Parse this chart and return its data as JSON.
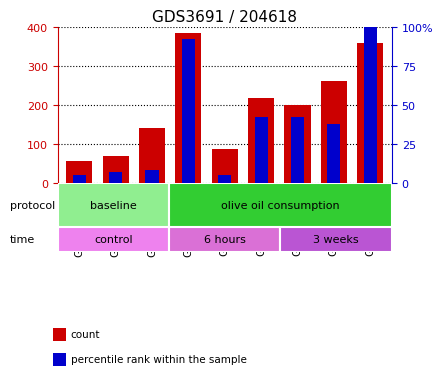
{
  "title": "GDS3691 / 204618",
  "categories": [
    "GSM266996",
    "GSM266997",
    "GSM266998",
    "GSM266999",
    "GSM267000",
    "GSM267001",
    "GSM267002",
    "GSM267003",
    "GSM267004"
  ],
  "count_values": [
    55,
    68,
    140,
    385,
    88,
    218,
    200,
    262,
    358
  ],
  "percentile_values": [
    5,
    7,
    8,
    92,
    5,
    42,
    42,
    38,
    105
  ],
  "ylim_left": [
    0,
    400
  ],
  "ylim_right": [
    0,
    100
  ],
  "yticks_left": [
    0,
    100,
    200,
    300,
    400
  ],
  "yticks_right": [
    0,
    25,
    50,
    75,
    100
  ],
  "ytick_labels_right": [
    "0",
    "25",
    "50",
    "75",
    "100%"
  ],
  "bar_color_red": "#cc0000",
  "bar_color_blue": "#0000cc",
  "bar_width": 0.4,
  "protocol_groups": [
    {
      "label": "baseline",
      "start": 0,
      "end": 3,
      "color": "#90ee90"
    },
    {
      "label": "olive oil consumption",
      "start": 3,
      "end": 9,
      "color": "#32cd32"
    }
  ],
  "time_groups": [
    {
      "label": "control",
      "start": 0,
      "end": 3,
      "color": "#ee82ee"
    },
    {
      "label": "6 hours",
      "start": 3,
      "end": 6,
      "color": "#da70d6"
    },
    {
      "label": "3 weeks",
      "start": 6,
      "end": 9,
      "color": "#ba55d3"
    }
  ],
  "legend_items": [
    {
      "color": "#cc0000",
      "label": "count"
    },
    {
      "color": "#0000cc",
      "label": "percentile rank within the sample"
    }
  ],
  "axis_color_left": "#cc0000",
  "axis_color_right": "#0000cc",
  "grid_color": "#000000",
  "background_color": "#ffffff"
}
